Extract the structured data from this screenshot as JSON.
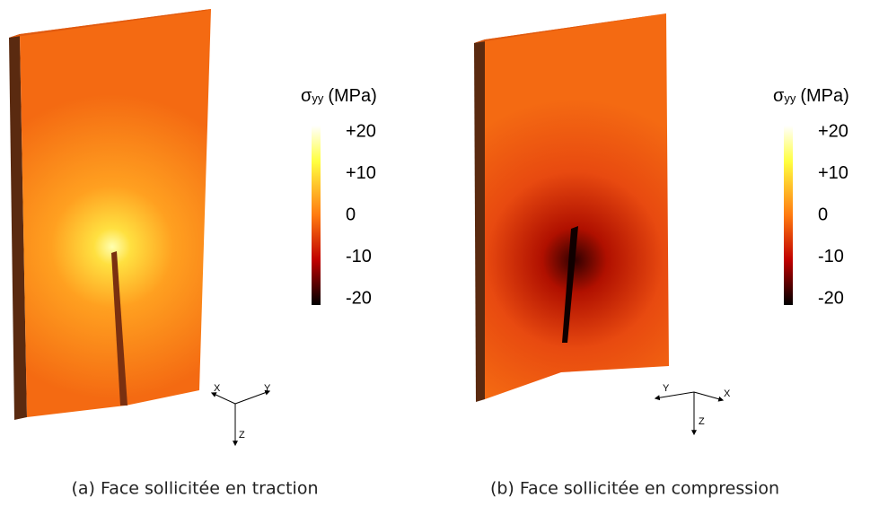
{
  "panels": [
    {
      "colorbar": {
        "symbol": "σ",
        "subscript": "yy",
        "unit": "(MPa)",
        "ticks": [
          "+20",
          "+10",
          "0",
          "-10",
          "-20"
        ]
      },
      "axes": {
        "x": "X",
        "y": "Y",
        "z": "Z"
      },
      "caption": "(a) Face sollicitée en traction"
    },
    {
      "colorbar": {
        "symbol": "σ",
        "subscript": "yy",
        "unit": "(MPa)",
        "ticks": [
          "+20",
          "+10",
          "0",
          "-10",
          "-20"
        ]
      },
      "axes": {
        "x": "X",
        "y": "Y",
        "z": "Z"
      },
      "caption": "(b) Face sollicitée en compression"
    }
  ]
}
